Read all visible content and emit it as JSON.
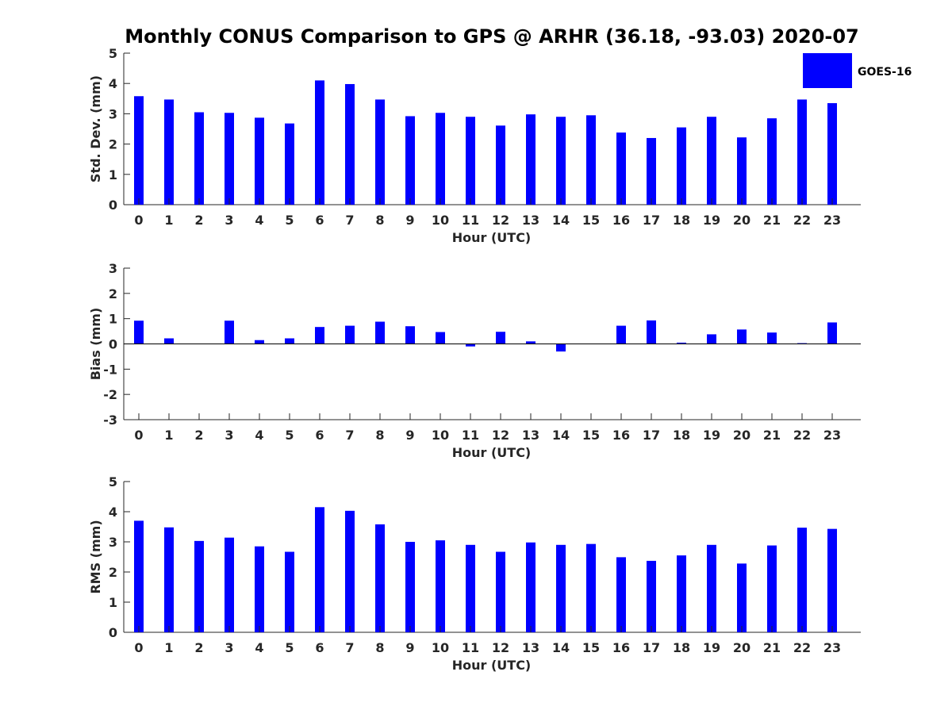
{
  "title": "Monthly CONUS Comparison to GPS @ ARHR (36.18, -93.03) 2020-07",
  "legend": {
    "label": "GOES-16",
    "placement": "top-right",
    "color": "#0000ff"
  },
  "bar_color": "#0000ff",
  "chart_data": [
    {
      "type": "bar",
      "name": "std-dev",
      "ylabel": "Std. Dev. (mm)",
      "xlabel": "Hour (UTC)",
      "ylim": [
        0,
        5
      ],
      "yticks": [
        0,
        1,
        2,
        3,
        4,
        5
      ],
      "categories": [
        "0",
        "1",
        "2",
        "3",
        "4",
        "5",
        "6",
        "7",
        "8",
        "9",
        "10",
        "11",
        "12",
        "13",
        "14",
        "15",
        "16",
        "17",
        "18",
        "19",
        "20",
        "21",
        "22",
        "23"
      ],
      "series": [
        {
          "name": "GOES-16",
          "values": [
            3.58,
            3.47,
            3.05,
            3.03,
            2.87,
            2.68,
            4.1,
            3.98,
            3.47,
            2.92,
            3.03,
            2.9,
            2.61,
            2.98,
            2.9,
            2.95,
            2.38,
            2.2,
            2.55,
            2.9,
            2.22,
            2.85,
            3.47,
            3.35
          ]
        }
      ],
      "grid": false
    },
    {
      "type": "bar",
      "name": "bias",
      "ylabel": "Bias (mm)",
      "xlabel": "Hour (UTC)",
      "ylim": [
        -3,
        3
      ],
      "yticks": [
        -3,
        -2,
        -1,
        0,
        1,
        2,
        3
      ],
      "categories": [
        "0",
        "1",
        "2",
        "3",
        "4",
        "5",
        "6",
        "7",
        "8",
        "9",
        "10",
        "11",
        "12",
        "13",
        "14",
        "15",
        "16",
        "17",
        "18",
        "19",
        "20",
        "21",
        "22",
        "23"
      ],
      "series": [
        {
          "name": "GOES-16",
          "values": [
            0.92,
            0.22,
            0.0,
            0.92,
            0.15,
            0.22,
            0.67,
            0.72,
            0.88,
            0.7,
            0.47,
            -0.1,
            0.48,
            0.1,
            -0.3,
            0.0,
            0.72,
            0.93,
            0.05,
            0.38,
            0.57,
            0.45,
            0.03,
            0.85
          ]
        }
      ],
      "grid": false
    },
    {
      "type": "bar",
      "name": "rms",
      "ylabel": "RMS (mm)",
      "xlabel": "Hour (UTC)",
      "ylim": [
        0,
        5
      ],
      "yticks": [
        0,
        1,
        2,
        3,
        4,
        5
      ],
      "categories": [
        "0",
        "1",
        "2",
        "3",
        "4",
        "5",
        "6",
        "7",
        "8",
        "9",
        "10",
        "11",
        "12",
        "13",
        "14",
        "15",
        "16",
        "17",
        "18",
        "19",
        "20",
        "21",
        "22",
        "23"
      ],
      "series": [
        {
          "name": "GOES-16",
          "values": [
            3.7,
            3.48,
            3.03,
            3.14,
            2.85,
            2.67,
            4.15,
            4.03,
            3.58,
            3.0,
            3.05,
            2.9,
            2.67,
            2.98,
            2.9,
            2.93,
            2.49,
            2.37,
            2.55,
            2.9,
            2.28,
            2.88,
            3.47,
            3.43
          ]
        }
      ],
      "grid": false
    }
  ]
}
